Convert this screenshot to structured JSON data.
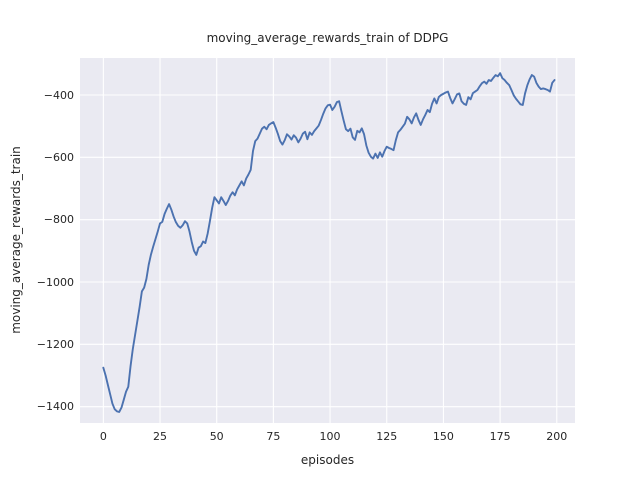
{
  "colors": {
    "figure_background": "#ffffff",
    "axes_background": "#eaeaf2",
    "grid": "#ffffff",
    "line": "#4c72b0",
    "text": "#262626"
  },
  "chart_data": {
    "type": "line",
    "title": "moving_average_rewards_train of DDPG",
    "xlabel": "episodes",
    "ylabel": "moving_average_rewards_train",
    "legend": "none",
    "grid": "on",
    "xlim": [
      -10.3,
      208.1
    ],
    "ylim": [
      -1452,
      -281
    ],
    "x_ticks": [
      0,
      25,
      50,
      75,
      100,
      125,
      150,
      175,
      200
    ],
    "x_tick_labels": [
      "0",
      "25",
      "50",
      "75",
      "100",
      "125",
      "150",
      "175",
      "200"
    ],
    "y_ticks": [
      -400,
      -600,
      -800,
      -1000,
      -1200,
      -1400
    ],
    "y_tick_labels": [
      "−400",
      "−600",
      "−800",
      "−1000",
      "−1200",
      "−1400"
    ],
    "series": [
      {
        "name": "moving_average_rewards_train",
        "x_start": 0,
        "x_step": 1,
        "values": [
          -1275,
          -1300,
          -1330,
          -1360,
          -1390,
          -1408,
          -1415,
          -1417,
          -1403,
          -1378,
          -1352,
          -1336,
          -1270,
          -1215,
          -1170,
          -1125,
          -1080,
          -1030,
          -1018,
          -990,
          -945,
          -912,
          -886,
          -862,
          -838,
          -812,
          -807,
          -782,
          -765,
          -750,
          -768,
          -790,
          -808,
          -820,
          -826,
          -818,
          -805,
          -812,
          -838,
          -872,
          -900,
          -913,
          -890,
          -885,
          -870,
          -875,
          -845,
          -805,
          -762,
          -728,
          -738,
          -748,
          -728,
          -740,
          -753,
          -740,
          -723,
          -712,
          -722,
          -703,
          -690,
          -677,
          -690,
          -668,
          -655,
          -640,
          -580,
          -548,
          -540,
          -524,
          -508,
          -502,
          -510,
          -496,
          -491,
          -487,
          -505,
          -525,
          -548,
          -559,
          -545,
          -526,
          -533,
          -543,
          -529,
          -537,
          -552,
          -540,
          -524,
          -518,
          -542,
          -520,
          -528,
          -516,
          -507,
          -498,
          -480,
          -460,
          -443,
          -433,
          -431,
          -448,
          -438,
          -423,
          -420,
          -452,
          -482,
          -510,
          -516,
          -508,
          -536,
          -544,
          -515,
          -520,
          -507,
          -526,
          -562,
          -585,
          -598,
          -604,
          -588,
          -602,
          -584,
          -598,
          -580,
          -566,
          -570,
          -573,
          -577,
          -545,
          -520,
          -512,
          -502,
          -492,
          -470,
          -478,
          -491,
          -472,
          -459,
          -480,
          -496,
          -478,
          -464,
          -448,
          -455,
          -428,
          -411,
          -427,
          -406,
          -400,
          -396,
          -392,
          -389,
          -410,
          -427,
          -413,
          -398,
          -395,
          -420,
          -428,
          -432,
          -407,
          -414,
          -394,
          -389,
          -384,
          -372,
          -362,
          -357,
          -364,
          -352,
          -355,
          -345,
          -336,
          -340,
          -330,
          -346,
          -352,
          -361,
          -368,
          -384,
          -401,
          -412,
          -421,
          -430,
          -432,
          -395,
          -369,
          -350,
          -336,
          -341,
          -361,
          -373,
          -381,
          -379,
          -381,
          -384,
          -389,
          -361,
          -352
        ]
      }
    ]
  }
}
